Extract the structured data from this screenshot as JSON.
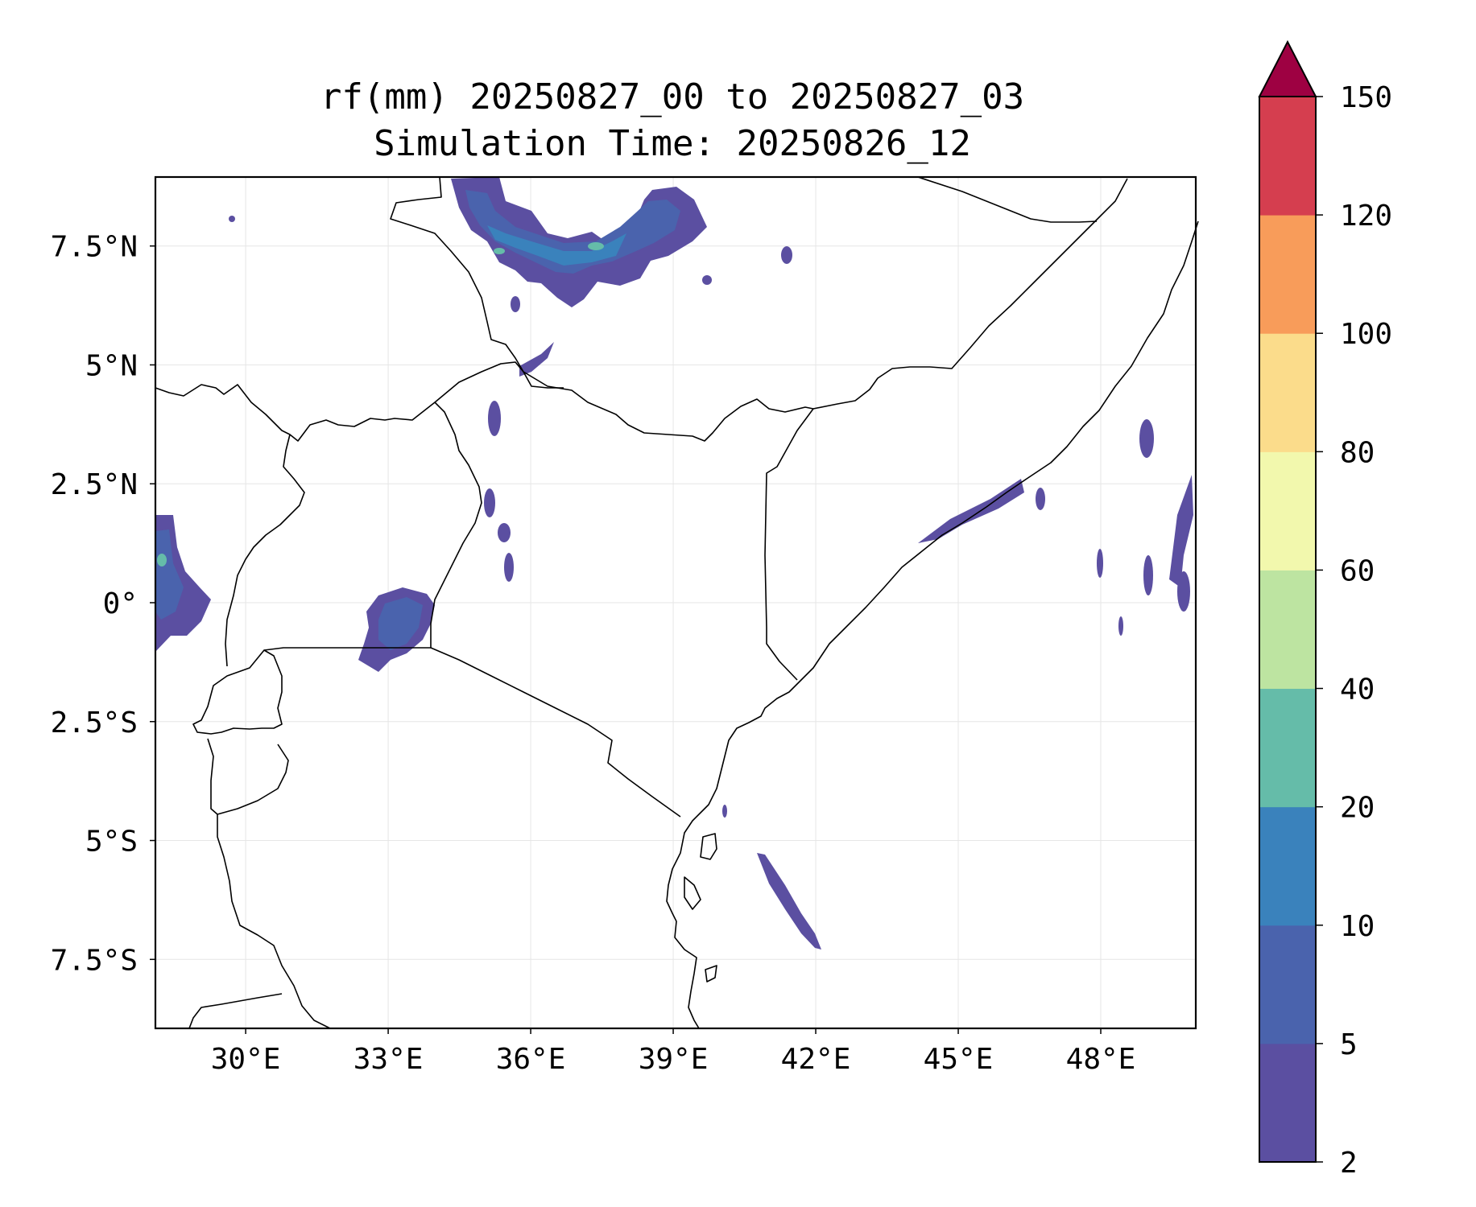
{
  "title_line1": "rf(mm) 20250827_00 to 20250827_03",
  "title_line2": "Simulation Time: 20250826_12",
  "map": {
    "lon_ticks": [
      {
        "value": 30,
        "label": "30°E"
      },
      {
        "value": 33,
        "label": "33°E"
      },
      {
        "value": 36,
        "label": "36°E"
      },
      {
        "value": 39,
        "label": "39°E"
      },
      {
        "value": 42,
        "label": "42°E"
      },
      {
        "value": 45,
        "label": "45°E"
      },
      {
        "value": 48,
        "label": "48°E"
      }
    ],
    "lat_ticks": [
      {
        "value": 7.5,
        "label": "7.5°N"
      },
      {
        "value": 5,
        "label": "5°N"
      },
      {
        "value": 2.5,
        "label": "2.5°N"
      },
      {
        "value": 0,
        "label": "0°"
      },
      {
        "value": -2.5,
        "label": "2.5°S"
      },
      {
        "value": -5,
        "label": "5°S"
      },
      {
        "value": -7.5,
        "label": "7.5°S"
      }
    ],
    "lon_range": [
      28.1,
      50
    ],
    "lat_range": [
      -8.95,
      8.95
    ],
    "gridlines": true
  },
  "colorbar": {
    "levels": [
      "2",
      "5",
      "10",
      "20",
      "40",
      "60",
      "80",
      "100",
      "120",
      "150"
    ],
    "colors": [
      "#5b4fa1",
      "#4a63ad",
      "#3a82bc",
      "#65bca9",
      "#bde4a1",
      "#f2f8ad",
      "#fbdc8b",
      "#f89c5a",
      "#d53e4f"
    ],
    "extend_color": "#9e0142",
    "extend": "max"
  }
}
